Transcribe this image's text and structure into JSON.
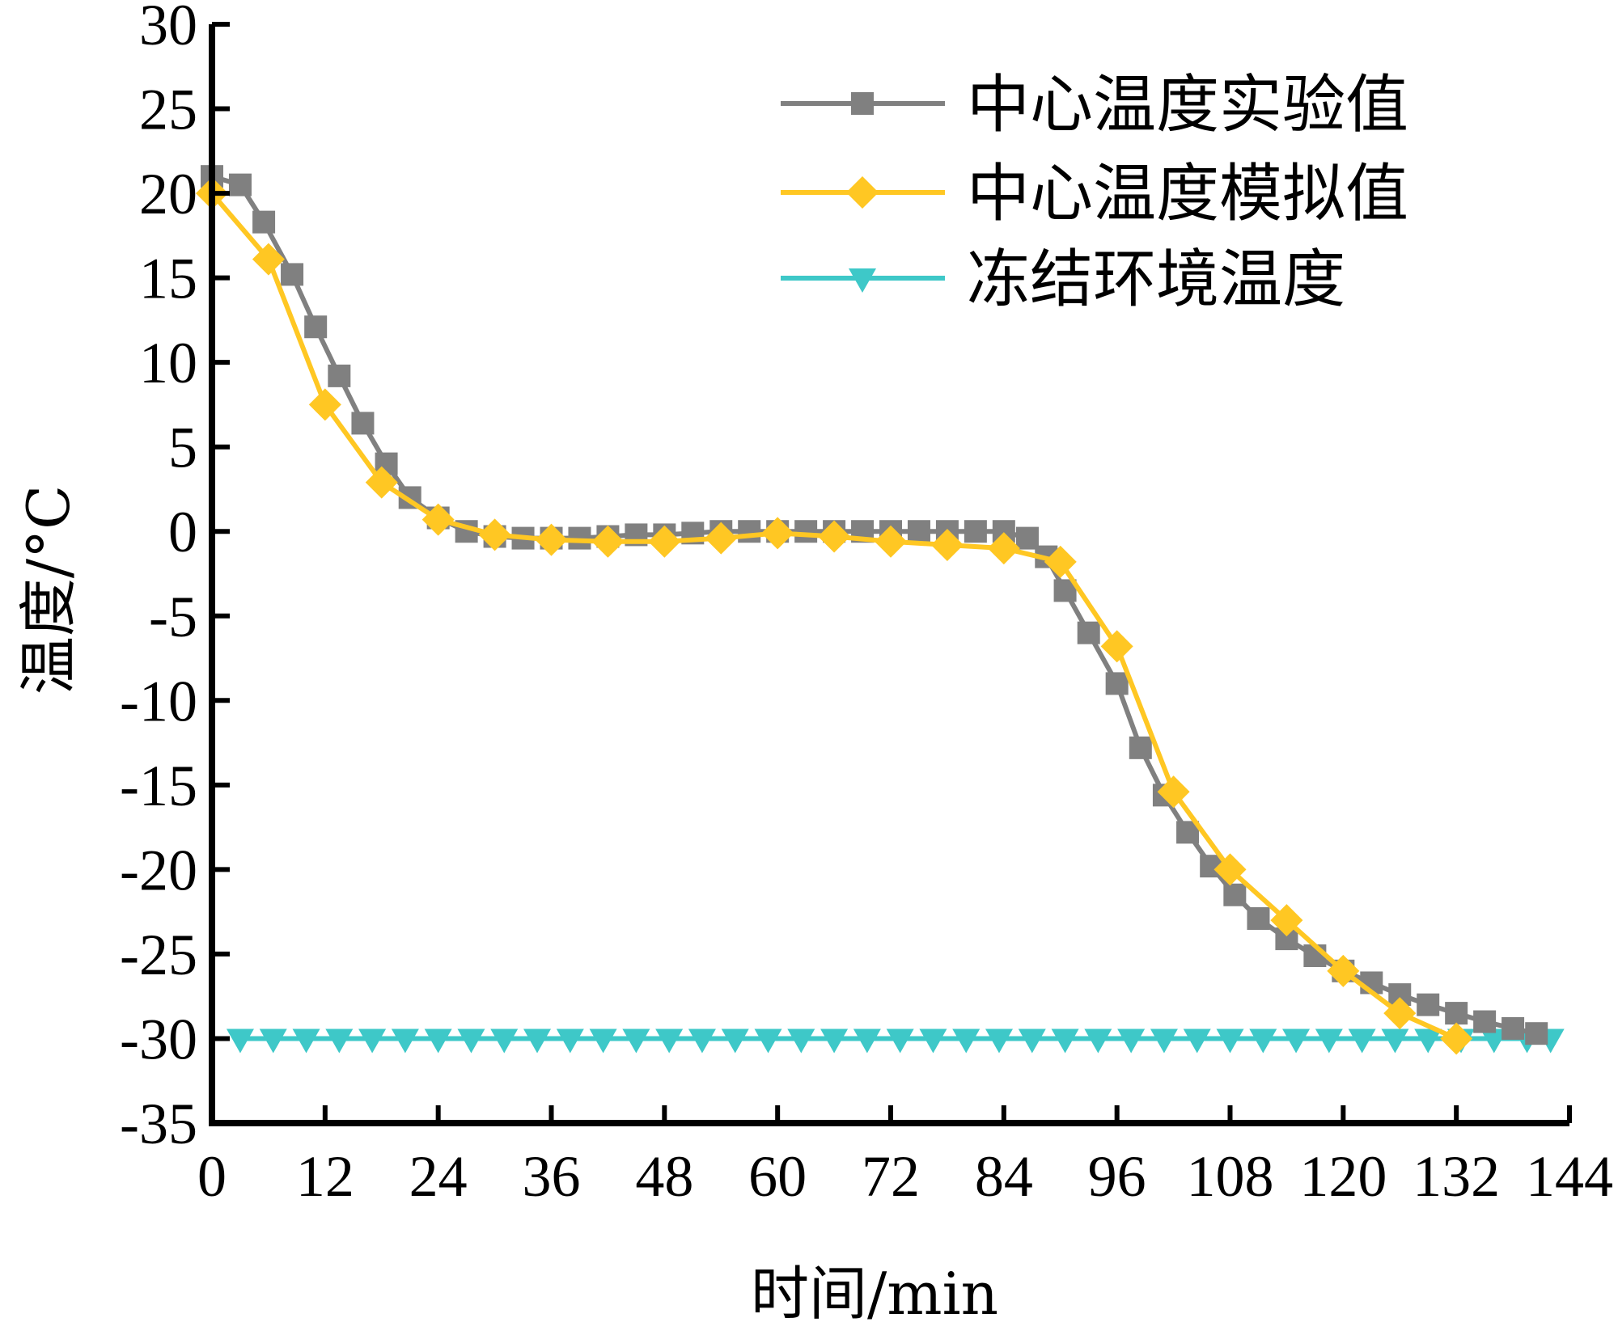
{
  "chart_data": {
    "type": "line",
    "xlabel": "时间/min",
    "ylabel": "温度/°C",
    "xlim": [
      0,
      144
    ],
    "ylim": [
      -35,
      30
    ],
    "x_ticks": [
      0,
      12,
      24,
      36,
      48,
      60,
      72,
      84,
      96,
      108,
      120,
      132,
      144
    ],
    "y_ticks": [
      30,
      25,
      20,
      15,
      10,
      5,
      0,
      -5,
      -10,
      -15,
      -20,
      -25,
      -30,
      -35
    ],
    "grid": false,
    "legend_position": "top-right",
    "series": [
      {
        "name": "中心温度实验值",
        "color": "#808080",
        "marker": "square",
        "points": [
          [
            0,
            21.0
          ],
          [
            3,
            20.5
          ],
          [
            5.5,
            18.3
          ],
          [
            8.5,
            15.2
          ],
          [
            11,
            12.1
          ],
          [
            13.5,
            9.2
          ],
          [
            16,
            6.4
          ],
          [
            18.5,
            4.0
          ],
          [
            21,
            2.0
          ],
          [
            24,
            0.8
          ],
          [
            27,
            0.0
          ],
          [
            30,
            -0.3
          ],
          [
            33,
            -0.4
          ],
          [
            36,
            -0.4
          ],
          [
            39,
            -0.4
          ],
          [
            42,
            -0.3
          ],
          [
            45,
            -0.2
          ],
          [
            48,
            -0.2
          ],
          [
            51,
            -0.1
          ],
          [
            54,
            0.0
          ],
          [
            57,
            0.0
          ],
          [
            60,
            0.0
          ],
          [
            63,
            0.0
          ],
          [
            66,
            0.0
          ],
          [
            69,
            0.0
          ],
          [
            72,
            0.0
          ],
          [
            75,
            0.0
          ],
          [
            78,
            0.0
          ],
          [
            81,
            0.0
          ],
          [
            84,
            0.0
          ],
          [
            86.5,
            -0.4
          ],
          [
            88.5,
            -1.5
          ],
          [
            90.5,
            -3.5
          ],
          [
            93,
            -6.0
          ],
          [
            96,
            -9.0
          ],
          [
            98.5,
            -12.8
          ],
          [
            101,
            -15.6
          ],
          [
            103.5,
            -17.8
          ],
          [
            106,
            -19.8
          ],
          [
            108.5,
            -21.5
          ],
          [
            111,
            -22.9
          ],
          [
            114,
            -24.1
          ],
          [
            117,
            -25.1
          ],
          [
            120,
            -26.0
          ],
          [
            123,
            -26.7
          ],
          [
            126,
            -27.4
          ],
          [
            129,
            -28.0
          ],
          [
            132,
            -28.5
          ],
          [
            135,
            -29.0
          ],
          [
            138,
            -29.4
          ],
          [
            140.5,
            -29.7
          ]
        ]
      },
      {
        "name": "中心温度模拟值",
        "color": "#FFC723",
        "marker": "diamond",
        "points": [
          [
            0,
            20.0
          ],
          [
            6,
            16.1
          ],
          [
            12,
            7.5
          ],
          [
            18,
            2.9
          ],
          [
            24,
            0.7
          ],
          [
            30,
            -0.2
          ],
          [
            36,
            -0.5
          ],
          [
            42,
            -0.6
          ],
          [
            48,
            -0.6
          ],
          [
            54,
            -0.4
          ],
          [
            60,
            -0.1
          ],
          [
            66,
            -0.3
          ],
          [
            72,
            -0.6
          ],
          [
            78,
            -0.8
          ],
          [
            84,
            -1.0
          ],
          [
            90,
            -1.8
          ],
          [
            96,
            -6.8
          ],
          [
            102,
            -15.4
          ],
          [
            108,
            -20.0
          ],
          [
            114,
            -23.0
          ],
          [
            120,
            -26.0
          ],
          [
            126,
            -28.5
          ],
          [
            132,
            -30.0
          ]
        ]
      },
      {
        "name": "冻结环境温度",
        "color": "#3EC8C8",
        "marker": "triangle-down",
        "points": [
          [
            3,
            -30
          ],
          [
            6.5,
            -30
          ],
          [
            10,
            -30
          ],
          [
            13.5,
            -30
          ],
          [
            17,
            -30
          ],
          [
            20.5,
            -30
          ],
          [
            24,
            -30
          ],
          [
            27.5,
            -30
          ],
          [
            31,
            -30
          ],
          [
            34.5,
            -30
          ],
          [
            38,
            -30
          ],
          [
            41.5,
            -30
          ],
          [
            45,
            -30
          ],
          [
            48.5,
            -30
          ],
          [
            52,
            -30
          ],
          [
            55.5,
            -30
          ],
          [
            59,
            -30
          ],
          [
            62.5,
            -30
          ],
          [
            66,
            -30
          ],
          [
            69.5,
            -30
          ],
          [
            73,
            -30
          ],
          [
            76.5,
            -30
          ],
          [
            80,
            -30
          ],
          [
            83.5,
            -30
          ],
          [
            87,
            -30
          ],
          [
            90.5,
            -30
          ],
          [
            94,
            -30
          ],
          [
            97.5,
            -30
          ],
          [
            101,
            -30
          ],
          [
            104.5,
            -30
          ],
          [
            108,
            -30
          ],
          [
            111.5,
            -30
          ],
          [
            115,
            -30
          ],
          [
            118.5,
            -30
          ],
          [
            122,
            -30
          ],
          [
            125.5,
            -30
          ],
          [
            129,
            -30
          ],
          [
            132.5,
            -30
          ],
          [
            136,
            -30
          ],
          [
            139.5,
            -30
          ],
          [
            142,
            -30
          ]
        ]
      }
    ]
  }
}
